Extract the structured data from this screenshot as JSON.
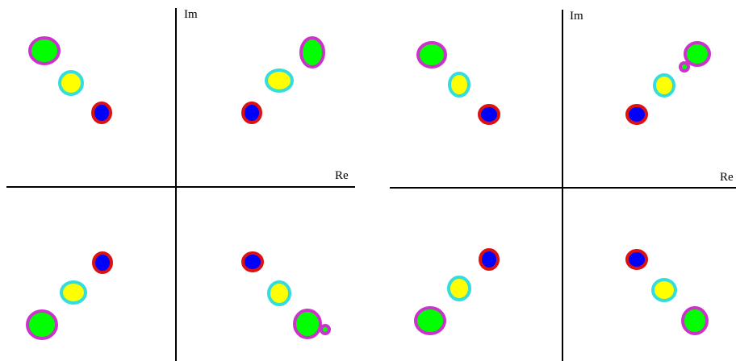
{
  "panels": [
    {
      "imaginary_axis_label": "Im",
      "real_axis_label": "Re"
    },
    {
      "imaginary_axis_label": "Im",
      "real_axis_label": "Re"
    }
  ]
}
